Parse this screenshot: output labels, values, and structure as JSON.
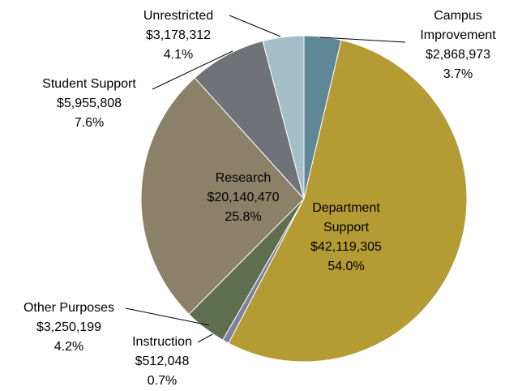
{
  "chart_data": {
    "type": "pie",
    "categories": [
      "Campus Improvement",
      "Department Support",
      "Instruction",
      "Other Purposes",
      "Research",
      "Student Support",
      "Unrestricted"
    ],
    "values": [
      2868973,
      42119305,
      512048,
      3250199,
      20140470,
      5955808,
      3178312
    ],
    "value_labels": [
      "$2,868,973",
      "$42,119,305",
      "$512,048",
      "$3,250,199",
      "$20,140,470",
      "$5,955,808",
      "$3,178,312"
    ],
    "percent_labels": [
      "3.7%",
      "54.0%",
      "0.7%",
      "4.2%",
      "25.8%",
      "7.6%",
      "4.1%"
    ],
    "colors": [
      "#5f8796",
      "#b59b33",
      "#8080a0",
      "#5f6e4f",
      "#8b8068",
      "#6f7378",
      "#a4bfc8"
    ]
  }
}
